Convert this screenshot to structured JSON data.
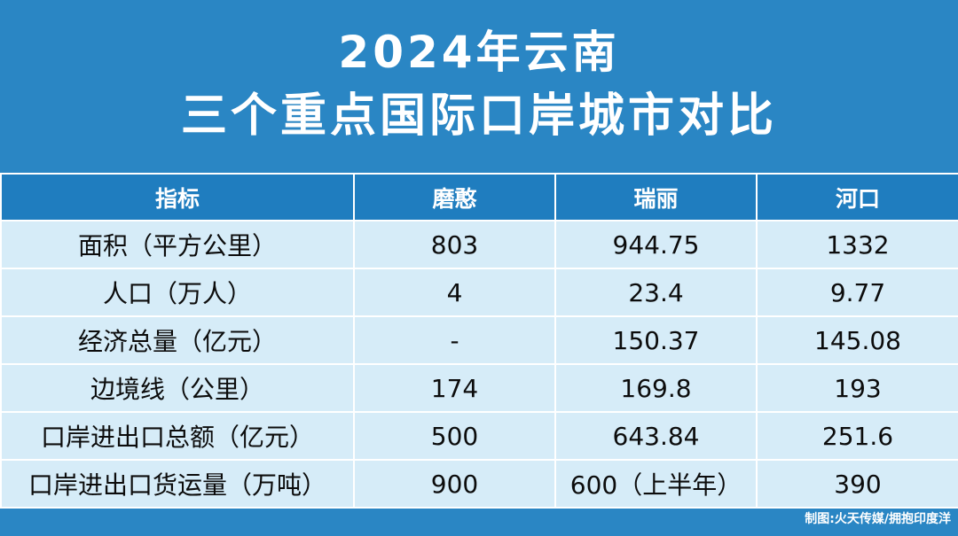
{
  "title": {
    "line1": "2024年云南",
    "line2": "三个重点国际口岸城市对比"
  },
  "chart_data": {
    "type": "table",
    "title": "2024年云南三个重点国际口岸城市对比",
    "columns": [
      "指标",
      "磨憨",
      "瑞丽",
      "河口"
    ],
    "rows": [
      [
        "面积（平方公里）",
        "803",
        "944.75",
        "1332"
      ],
      [
        "人口（万人）",
        "4",
        "23.4",
        "9.77"
      ],
      [
        "经济总量（亿元）",
        "-",
        "150.37",
        "145.08"
      ],
      [
        "边境线（公里）",
        "174",
        "169.8",
        "193"
      ],
      [
        "口岸进出口总额（亿元）",
        "500",
        "643.84",
        "251.6"
      ],
      [
        "口岸进出口货运量（万吨）",
        "900",
        "600（上半年）",
        "390"
      ]
    ]
  },
  "credit": "制图:火天传媒/拥抱印度洋",
  "colors": {
    "background": "#2a86c4",
    "header": "#1f7dbf",
    "cell": "#d6ecf8",
    "border": "#ffffff"
  }
}
